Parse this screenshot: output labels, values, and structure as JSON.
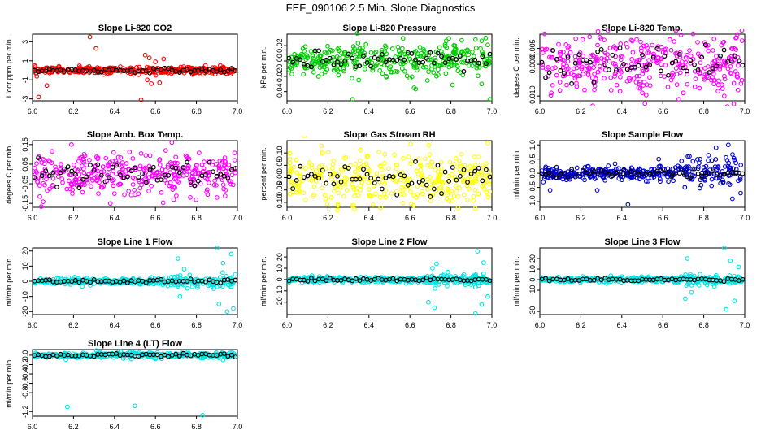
{
  "title": "FEF_090106  2.5 Min. Slope Diagnostics",
  "chart_data": [
    {
      "type": "scatter",
      "title": "Slope Li-820 CO2",
      "ylabel": "Licor ppm per min.",
      "color": "#ff0000",
      "ylim": [
        -3.2,
        3.8
      ],
      "yticks": [
        "-3",
        "-1",
        "1",
        "3"
      ],
      "ytick_values": [
        -3,
        -1,
        1,
        3
      ],
      "xlim": [
        6.0,
        7.0
      ],
      "xticks": [
        "6.0",
        "6.2",
        "6.4",
        "6.6",
        "6.8",
        "7.0"
      ],
      "base_spread": 0.18,
      "outliers": [
        [
          6.03,
          -2.8
        ],
        [
          6.07,
          -1.6
        ],
        [
          6.28,
          3.5
        ],
        [
          6.31,
          2.3
        ],
        [
          6.53,
          -3.1
        ],
        [
          6.55,
          1.6
        ],
        [
          6.56,
          -1.0
        ],
        [
          6.57,
          1.3
        ],
        [
          6.58,
          -1.4
        ],
        [
          6.6,
          0.9
        ],
        [
          6.62,
          -1.3
        ],
        [
          6.64,
          1.2
        ]
      ]
    },
    {
      "type": "scatter",
      "title": "Slope Li-820 Pressure",
      "ylabel": "kPa per min.",
      "color": "#00cc00",
      "ylim": [
        -0.052,
        0.035
      ],
      "yticks": [
        "-0.04",
        "-0.02",
        "0.00",
        "0.02"
      ],
      "ytick_values": [
        -0.04,
        -0.02,
        0.0,
        0.02
      ],
      "xlim": [
        6.0,
        7.0
      ],
      "xticks": [
        "6.0",
        "6.2",
        "6.4",
        "6.6",
        "6.8",
        "7.0"
      ],
      "base_spread": 0.011,
      "outliers": [
        [
          6.32,
          -0.05
        ],
        [
          6.62,
          -0.035
        ],
        [
          6.95,
          -0.03
        ],
        [
          6.97,
          0.03
        ],
        [
          6.99,
          -0.05
        ],
        [
          6.92,
          0.028
        ]
      ]
    },
    {
      "type": "scatter",
      "title": "Slope Li-820 Temp.",
      "ylabel": "degees C per min.",
      "color": "#ff00ff",
      "ylim": [
        -0.0115,
        0.0095
      ],
      "yticks": [
        "-0.010",
        "0.000",
        "0.005"
      ],
      "ytick_values": [
        -0.01,
        0.0,
        0.005
      ],
      "xlim": [
        6.0,
        7.0
      ],
      "xticks": [
        "6.0",
        "6.2",
        "6.4",
        "6.6",
        "6.8",
        "7.0"
      ],
      "base_spread": 0.0045,
      "outliers": [
        [
          6.18,
          -0.007
        ],
        [
          6.3,
          0.008
        ],
        [
          6.5,
          -0.009
        ],
        [
          6.7,
          -0.009
        ],
        [
          6.85,
          0.008
        ],
        [
          6.9,
          -0.01
        ]
      ]
    },
    {
      "type": "scatter",
      "title": "Slope Amb. Box Temp.",
      "ylabel": "degees C per min.",
      "color": "#ff00ff",
      "ylim": [
        -0.17,
        0.17
      ],
      "yticks": [
        "-0.15",
        "-0.05",
        "0.05",
        "0.15"
      ],
      "ytick_values": [
        -0.15,
        -0.05,
        0.05,
        0.15
      ],
      "xlim": [
        6.0,
        7.0
      ],
      "xticks": [
        "6.0",
        "6.2",
        "6.4",
        "6.6",
        "6.8",
        "7.0"
      ],
      "base_spread": 0.05,
      "outliers": [
        [
          6.19,
          0.15
        ],
        [
          6.38,
          -0.15
        ],
        [
          6.4,
          -0.1
        ],
        [
          6.65,
          0.12
        ],
        [
          6.68,
          0.16
        ],
        [
          6.9,
          -0.12
        ]
      ]
    },
    {
      "type": "scatter",
      "title": "Slope Gas Stream RH",
      "ylabel": "percent per min.",
      "color": "#ffff00",
      "ylim": [
        -0.12,
        0.15
      ],
      "yticks": [
        "-0.10",
        "-0.05",
        "0.00",
        "0.05",
        "0.10"
      ],
      "ytick_values": [
        -0.1,
        -0.05,
        0.0,
        0.05,
        0.1
      ],
      "xlim": [
        6.0,
        7.0
      ],
      "xticks": [
        "6.0",
        "6.2",
        "6.4",
        "6.6",
        "6.8",
        "7.0"
      ],
      "base_spread": 0.05,
      "outliers": [
        [
          6.42,
          -0.11
        ],
        [
          6.98,
          0.14
        ]
      ]
    },
    {
      "type": "scatter",
      "title": "Slope Sample Flow",
      "ylabel": "ml/min per min.",
      "color": "#0000cc",
      "ylim": [
        -1.2,
        1.15
      ],
      "yticks": [
        "-1.0",
        "-0.5",
        "0.0",
        "0.5",
        "1.0"
      ],
      "ytick_values": [
        -1.0,
        -0.5,
        0.0,
        0.5,
        1.0
      ],
      "xlim": [
        6.0,
        7.0
      ],
      "xticks": [
        "6.0",
        "6.2",
        "6.4",
        "6.6",
        "6.8",
        "7.0"
      ],
      "base_spread": 0.12,
      "outliers": [
        [
          6.05,
          -0.6
        ],
        [
          6.28,
          -0.6
        ],
        [
          6.43,
          -1.1
        ],
        [
          6.58,
          0.5
        ],
        [
          6.73,
          0.6
        ],
        [
          6.86,
          0.9
        ],
        [
          6.92,
          1.0
        ],
        [
          6.94,
          -0.9
        ],
        [
          6.98,
          -0.7
        ]
      ]
    },
    {
      "type": "scatter",
      "title": "Slope Line 1 Flow",
      "ylabel": "ml/min per min.",
      "color": "#00e5e5",
      "ylim": [
        -22,
        22
      ],
      "yticks": [
        "-20",
        "-10",
        "0",
        "10",
        "20"
      ],
      "ytick_values": [
        -20,
        -10,
        0,
        10,
        20
      ],
      "xlim": [
        6.0,
        7.0
      ],
      "xticks": [
        "6.0",
        "6.2",
        "6.4",
        "6.6",
        "6.8",
        "7.0"
      ],
      "base_spread": 1.0,
      "outliers": [
        [
          6.71,
          15
        ],
        [
          6.72,
          -10
        ],
        [
          6.74,
          8
        ],
        [
          6.9,
          22
        ],
        [
          6.91,
          -15
        ],
        [
          6.93,
          12
        ],
        [
          6.95,
          -20
        ],
        [
          6.97,
          18
        ],
        [
          6.98,
          -18
        ]
      ]
    },
    {
      "type": "scatter",
      "title": "Slope Line 2 Flow",
      "ylabel": "ml/min per min.",
      "color": "#00e5e5",
      "ylim": [
        -31,
        28
      ],
      "yticks": [
        "-20",
        "-10",
        "0",
        "10",
        "20"
      ],
      "ytick_values": [
        -20,
        -10,
        0,
        10,
        20
      ],
      "xlim": [
        6.0,
        7.0
      ],
      "xticks": [
        "6.0",
        "6.2",
        "6.4",
        "6.6",
        "6.8",
        "7.0"
      ],
      "base_spread": 1.2,
      "outliers": [
        [
          6.69,
          -20
        ],
        [
          6.71,
          10
        ],
        [
          6.72,
          -25
        ],
        [
          6.73,
          14
        ],
        [
          6.92,
          -30
        ],
        [
          6.93,
          25
        ],
        [
          6.95,
          -22
        ],
        [
          6.96,
          15
        ],
        [
          6.98,
          -15
        ]
      ]
    },
    {
      "type": "scatter",
      "title": "Slope Line 3 Flow",
      "ylabel": "ml/min per min.",
      "color": "#00e5e5",
      "ylim": [
        -33,
        30
      ],
      "yticks": [
        "-30",
        "-10",
        "0",
        "10",
        "20"
      ],
      "ytick_values": [
        -30,
        -10,
        0,
        10,
        20
      ],
      "xlim": [
        6.0,
        7.0
      ],
      "xticks": [
        "6.0",
        "6.2",
        "6.4",
        "6.6",
        "6.8",
        "7.0"
      ],
      "base_spread": 1.2,
      "outliers": [
        [
          6.71,
          -18
        ],
        [
          6.72,
          20
        ],
        [
          6.74,
          -12
        ],
        [
          6.9,
          30
        ],
        [
          6.91,
          -28
        ],
        [
          6.93,
          18
        ],
        [
          6.95,
          -20
        ],
        [
          6.97,
          12
        ]
      ]
    },
    {
      "type": "scatter",
      "title": "Slope Line 4 (LT) Flow",
      "ylabel": "ml/min per min.",
      "color": "#00e5e5",
      "ylim": [
        -1.3,
        0.12
      ],
      "yticks": [
        "-1.2",
        "-0.8",
        "-0.6",
        "-0.4",
        "-0.2",
        "0.0"
      ],
      "ytick_values": [
        -1.2,
        -0.8,
        -0.6,
        -0.4,
        -0.2,
        0.0
      ],
      "xlim": [
        6.0,
        7.0
      ],
      "xticks": [
        "6.0",
        "6.2",
        "6.4",
        "6.6",
        "6.8",
        "7.0"
      ],
      "base_spread": 0.03,
      "outliers": [
        [
          6.17,
          -1.1
        ],
        [
          6.5,
          -1.08
        ],
        [
          6.83,
          -1.28
        ],
        [
          6.93,
          -0.1
        ],
        [
          6.6,
          -0.08
        ]
      ]
    }
  ]
}
